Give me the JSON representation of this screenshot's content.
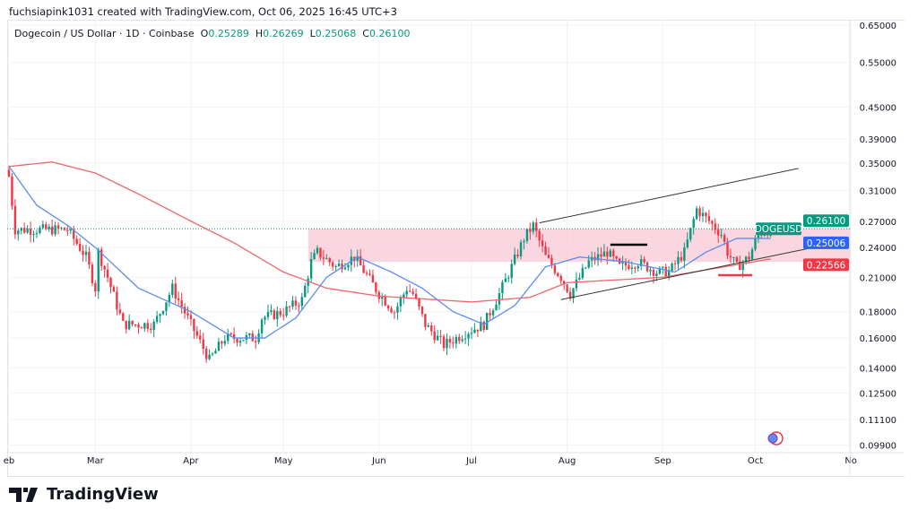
{
  "credit": "fuchsiapink1031 created with TradingView.com, Oct 06, 2025 16:45 UTC+3",
  "legend": {
    "name": "Dogecoin / US Dollar · 1D · Coinbase",
    "o_label": "O",
    "o": "0.25289",
    "h_label": "H",
    "h": "0.26269",
    "l_label": "L",
    "l": "0.25068",
    "c_label": "C",
    "c": "0.26100"
  },
  "logo_text": "TradingView",
  "colors": {
    "up": "#089981",
    "down": "#f23645",
    "ma_fast": "#5b8def",
    "ma_slow": "#f0666c",
    "zone": "#f8c8d6",
    "last": "#089981",
    "ma_fast_tag": "#2962ff",
    "ma_slow_tag": "#f23645"
  },
  "chart_data": {
    "type": "candlestick",
    "symbol": "DOGEUSD",
    "scale": "log",
    "ylim": [
      0.095,
      0.68
    ],
    "xlim": [
      "2025-01-31",
      "2025-11-08"
    ],
    "x_ticks": [
      "eb",
      "Mar",
      "Apr",
      "May",
      "Jun",
      "Jul",
      "Aug",
      "Sep",
      "Oct",
      "No"
    ],
    "x_tick_dates": [
      "2025-02-01",
      "2025-03-01",
      "2025-04-01",
      "2025-05-01",
      "2025-06-01",
      "2025-07-01",
      "2025-08-01",
      "2025-09-01",
      "2025-10-01",
      "2025-11-01"
    ],
    "y_ticks": [
      "0.65000",
      "0.55000",
      "0.45000",
      "0.39000",
      "0.35000",
      "0.31000",
      "0.27000",
      "0.24000",
      "0.21000",
      "0.18000",
      "0.16000",
      "0.14000",
      "0.12500",
      "0.11100",
      "0.09900"
    ],
    "y_tick_values": [
      0.65,
      0.55,
      0.45,
      0.39,
      0.35,
      0.31,
      0.27,
      0.24,
      0.21,
      0.18,
      0.16,
      0.14,
      0.125,
      0.111,
      0.099
    ],
    "close_path": [
      [
        "2025-02-01",
        0.33
      ],
      [
        "2025-02-03",
        0.26
      ],
      [
        "2025-02-10",
        0.26
      ],
      [
        "2025-02-20",
        0.26
      ],
      [
        "2025-02-26",
        0.23
      ],
      [
        "2025-03-01",
        0.2
      ],
      [
        "2025-03-02",
        0.235
      ],
      [
        "2025-03-05",
        0.21
      ],
      [
        "2025-03-10",
        0.17
      ],
      [
        "2025-03-20",
        0.17
      ],
      [
        "2025-03-26",
        0.2
      ],
      [
        "2025-04-01",
        0.17
      ],
      [
        "2025-04-07",
        0.145
      ],
      [
        "2025-04-12",
        0.16
      ],
      [
        "2025-04-22",
        0.16
      ],
      [
        "2025-04-24",
        0.175
      ],
      [
        "2025-05-01",
        0.18
      ],
      [
        "2025-05-07",
        0.19
      ],
      [
        "2025-05-10",
        0.225
      ],
      [
        "2025-05-12",
        0.235
      ],
      [
        "2025-05-18",
        0.22
      ],
      [
        "2025-05-24",
        0.23
      ],
      [
        "2025-06-01",
        0.195
      ],
      [
        "2025-06-06",
        0.18
      ],
      [
        "2025-06-10",
        0.2
      ],
      [
        "2025-06-12",
        0.195
      ],
      [
        "2025-06-16",
        0.17
      ],
      [
        "2025-06-22",
        0.155
      ],
      [
        "2025-06-30",
        0.165
      ],
      [
        "2025-07-05",
        0.17
      ],
      [
        "2025-07-10",
        0.195
      ],
      [
        "2025-07-14",
        0.22
      ],
      [
        "2025-07-18",
        0.25
      ],
      [
        "2025-07-21",
        0.265
      ],
      [
        "2025-07-25",
        0.23
      ],
      [
        "2025-07-30",
        0.21
      ],
      [
        "2025-08-02",
        0.195
      ],
      [
        "2025-08-08",
        0.225
      ],
      [
        "2025-08-14",
        0.235
      ],
      [
        "2025-08-18",
        0.22
      ],
      [
        "2025-08-24",
        0.225
      ],
      [
        "2025-08-30",
        0.215
      ],
      [
        "2025-09-03",
        0.215
      ],
      [
        "2025-09-08",
        0.235
      ],
      [
        "2025-09-12",
        0.285
      ],
      [
        "2025-09-16",
        0.27
      ],
      [
        "2025-09-20",
        0.255
      ],
      [
        "2025-09-22",
        0.235
      ],
      [
        "2025-09-25",
        0.22
      ],
      [
        "2025-09-29",
        0.23
      ],
      [
        "2025-10-02",
        0.255
      ],
      [
        "2025-10-06",
        0.261
      ]
    ],
    "ma_fast": [
      [
        "2025-02-01",
        0.345
      ],
      [
        "2025-02-10",
        0.29
      ],
      [
        "2025-02-20",
        0.265
      ],
      [
        "2025-03-01",
        0.24
      ],
      [
        "2025-03-15",
        0.2
      ],
      [
        "2025-04-01",
        0.18
      ],
      [
        "2025-04-15",
        0.16
      ],
      [
        "2025-04-25",
        0.16
      ],
      [
        "2025-05-05",
        0.175
      ],
      [
        "2025-05-15",
        0.21
      ],
      [
        "2025-05-25",
        0.23
      ],
      [
        "2025-06-05",
        0.215
      ],
      [
        "2025-06-15",
        0.2
      ],
      [
        "2025-06-25",
        0.18
      ],
      [
        "2025-07-05",
        0.17
      ],
      [
        "2025-07-15",
        0.185
      ],
      [
        "2025-07-25",
        0.22
      ],
      [
        "2025-08-05",
        0.23
      ],
      [
        "2025-08-20",
        0.225
      ],
      [
        "2025-09-05",
        0.215
      ],
      [
        "2025-09-15",
        0.235
      ],
      [
        "2025-09-25",
        0.25
      ],
      [
        "2025-10-06",
        0.25
      ]
    ],
    "ma_slow": [
      [
        "2025-02-01",
        0.345
      ],
      [
        "2025-02-15",
        0.352
      ],
      [
        "2025-03-01",
        0.335
      ],
      [
        "2025-03-15",
        0.305
      ],
      [
        "2025-04-01",
        0.27
      ],
      [
        "2025-04-15",
        0.245
      ],
      [
        "2025-05-01",
        0.215
      ],
      [
        "2025-05-15",
        0.2
      ],
      [
        "2025-06-01",
        0.193
      ],
      [
        "2025-07-01",
        0.188
      ],
      [
        "2025-07-20",
        0.192
      ],
      [
        "2025-08-01",
        0.205
      ],
      [
        "2025-09-01",
        0.21
      ],
      [
        "2025-10-06",
        0.228
      ]
    ],
    "zone": {
      "from": "2025-05-09",
      "low": 0.225,
      "high": 0.261
    },
    "channel_upper": [
      [
        "2025-07-23",
        0.268
      ],
      [
        "2025-10-15",
        0.342
      ]
    ],
    "channel_lower": [
      [
        "2025-07-30",
        0.19
      ],
      [
        "2025-10-27",
        0.245
      ]
    ],
    "hline_black": {
      "from": "2025-08-15",
      "to": "2025-08-27",
      "price": 0.243
    },
    "hline_red": {
      "from": "2025-09-19",
      "to": "2025-09-30",
      "price": 0.212
    },
    "price_tags": {
      "symbol": "DOGEUSD",
      "last": "0.26100",
      "ma_fast": "0.25006",
      "ma_slow": "0.22566"
    }
  }
}
